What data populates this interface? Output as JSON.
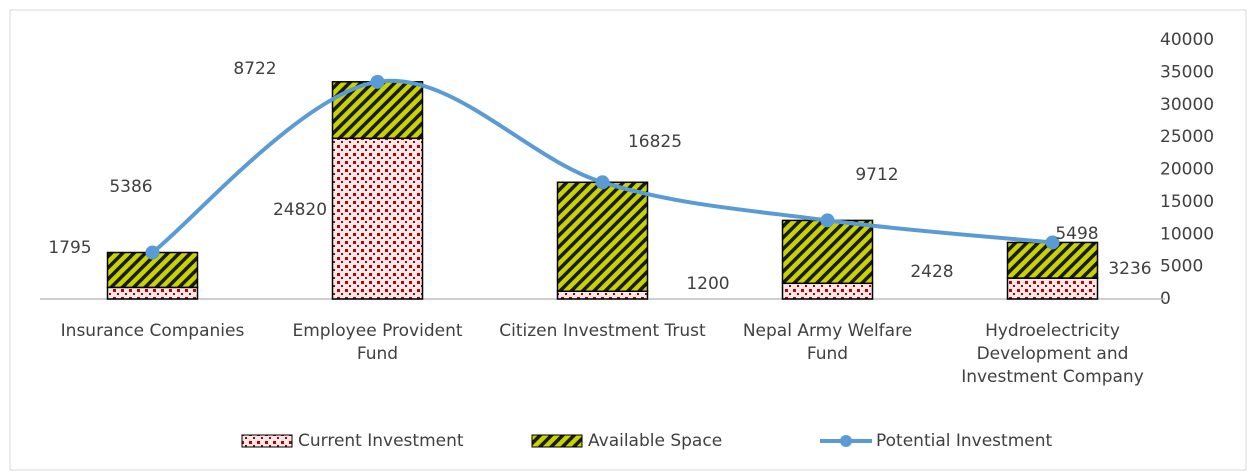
{
  "chart_data": {
    "type": "bar-line",
    "categories": [
      "Insurance Companies",
      "Employee Provident Fund",
      "Citizen Investment Trust",
      "Nepal Army Welfare Fund",
      "Hydroelectricity Development and Investment Company"
    ],
    "series": [
      {
        "name": "Current Investment",
        "type": "bar",
        "color": "#c00000",
        "values": [
          1795,
          24820,
          1200,
          2428,
          3236
        ]
      },
      {
        "name": "Available Space",
        "type": "bar",
        "color": "#c8d400",
        "values": [
          5386,
          8722,
          16825,
          9712,
          5498
        ]
      },
      {
        "name": "Potential Investment",
        "type": "line",
        "color": "#5b9bd5",
        "values": [
          7181,
          33542,
          18025,
          12140,
          8734
        ]
      }
    ],
    "ylim": [
      0,
      40000
    ],
    "yticks": [
      0,
      5000,
      10000,
      15000,
      20000,
      25000,
      30000,
      35000,
      40000
    ],
    "stacked": true,
    "smooth": true,
    "legend": "bottom",
    "grid": false
  }
}
